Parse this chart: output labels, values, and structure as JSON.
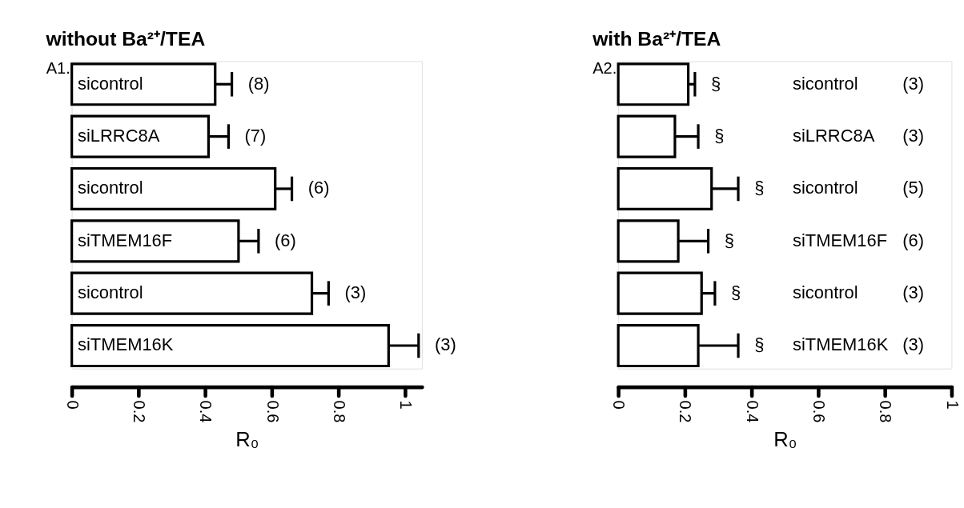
{
  "chart_data": [
    {
      "type": "bar",
      "orientation": "horizontal",
      "title": "without Ba²⁺/TEA",
      "xlabel": "R₀",
      "tick_labels": "x",
      "categories": [
        "sicontrol",
        "siLRRC8A",
        "sicontrol",
        "siTMEM16F",
        "sicontrol",
        "siTMEM16K"
      ],
      "values": [
        0.43,
        0.41,
        0.61,
        0.5,
        0.72,
        0.95
      ],
      "errors": [
        [
          0.43,
          0.48
        ],
        [
          0.41,
          0.47
        ],
        [
          0.61,
          0.66
        ],
        [
          0.5,
          0.56
        ],
        [
          0.72,
          0.77
        ],
        [
          0.95,
          1.04
        ]
      ],
      "xlim": [
        0,
        1.05
      ],
      "xticks": [
        0,
        0.2,
        0.4,
        0.6,
        0.8,
        1
      ],
      "annotations": [
        "A1.",
        "(8)",
        "(7)",
        "(6)",
        "(6)",
        "(3)",
        "(3)"
      ]
    },
    {
      "type": "bar",
      "orientation": "horizontal",
      "title": "with Ba²⁺/TEA",
      "xlabel": "R₀",
      "tick_labels": "x",
      "categories": [
        "sicontrol",
        "siLRRC8A",
        "sicontrol",
        "siTMEM16F",
        "sicontrol",
        "siTMEM16K"
      ],
      "values": [
        0.21,
        0.17,
        0.28,
        0.18,
        0.25,
        0.24
      ],
      "errors": [
        [
          0.21,
          0.23
        ],
        [
          0.17,
          0.24
        ],
        [
          0.28,
          0.36
        ],
        [
          0.18,
          0.27
        ],
        [
          0.25,
          0.29
        ],
        [
          0.24,
          0.36
        ]
      ],
      "xlim": [
        0,
        1
      ],
      "xticks": [
        0,
        0.2,
        0.4,
        0.6,
        0.8,
        1
      ],
      "annotations": [
        "A2.",
        "§",
        "§",
        "§",
        "§",
        "§",
        "§",
        "(3)",
        "(3)",
        "(5)",
        "(6)",
        "(3)",
        "(3)"
      ]
    }
  ]
}
